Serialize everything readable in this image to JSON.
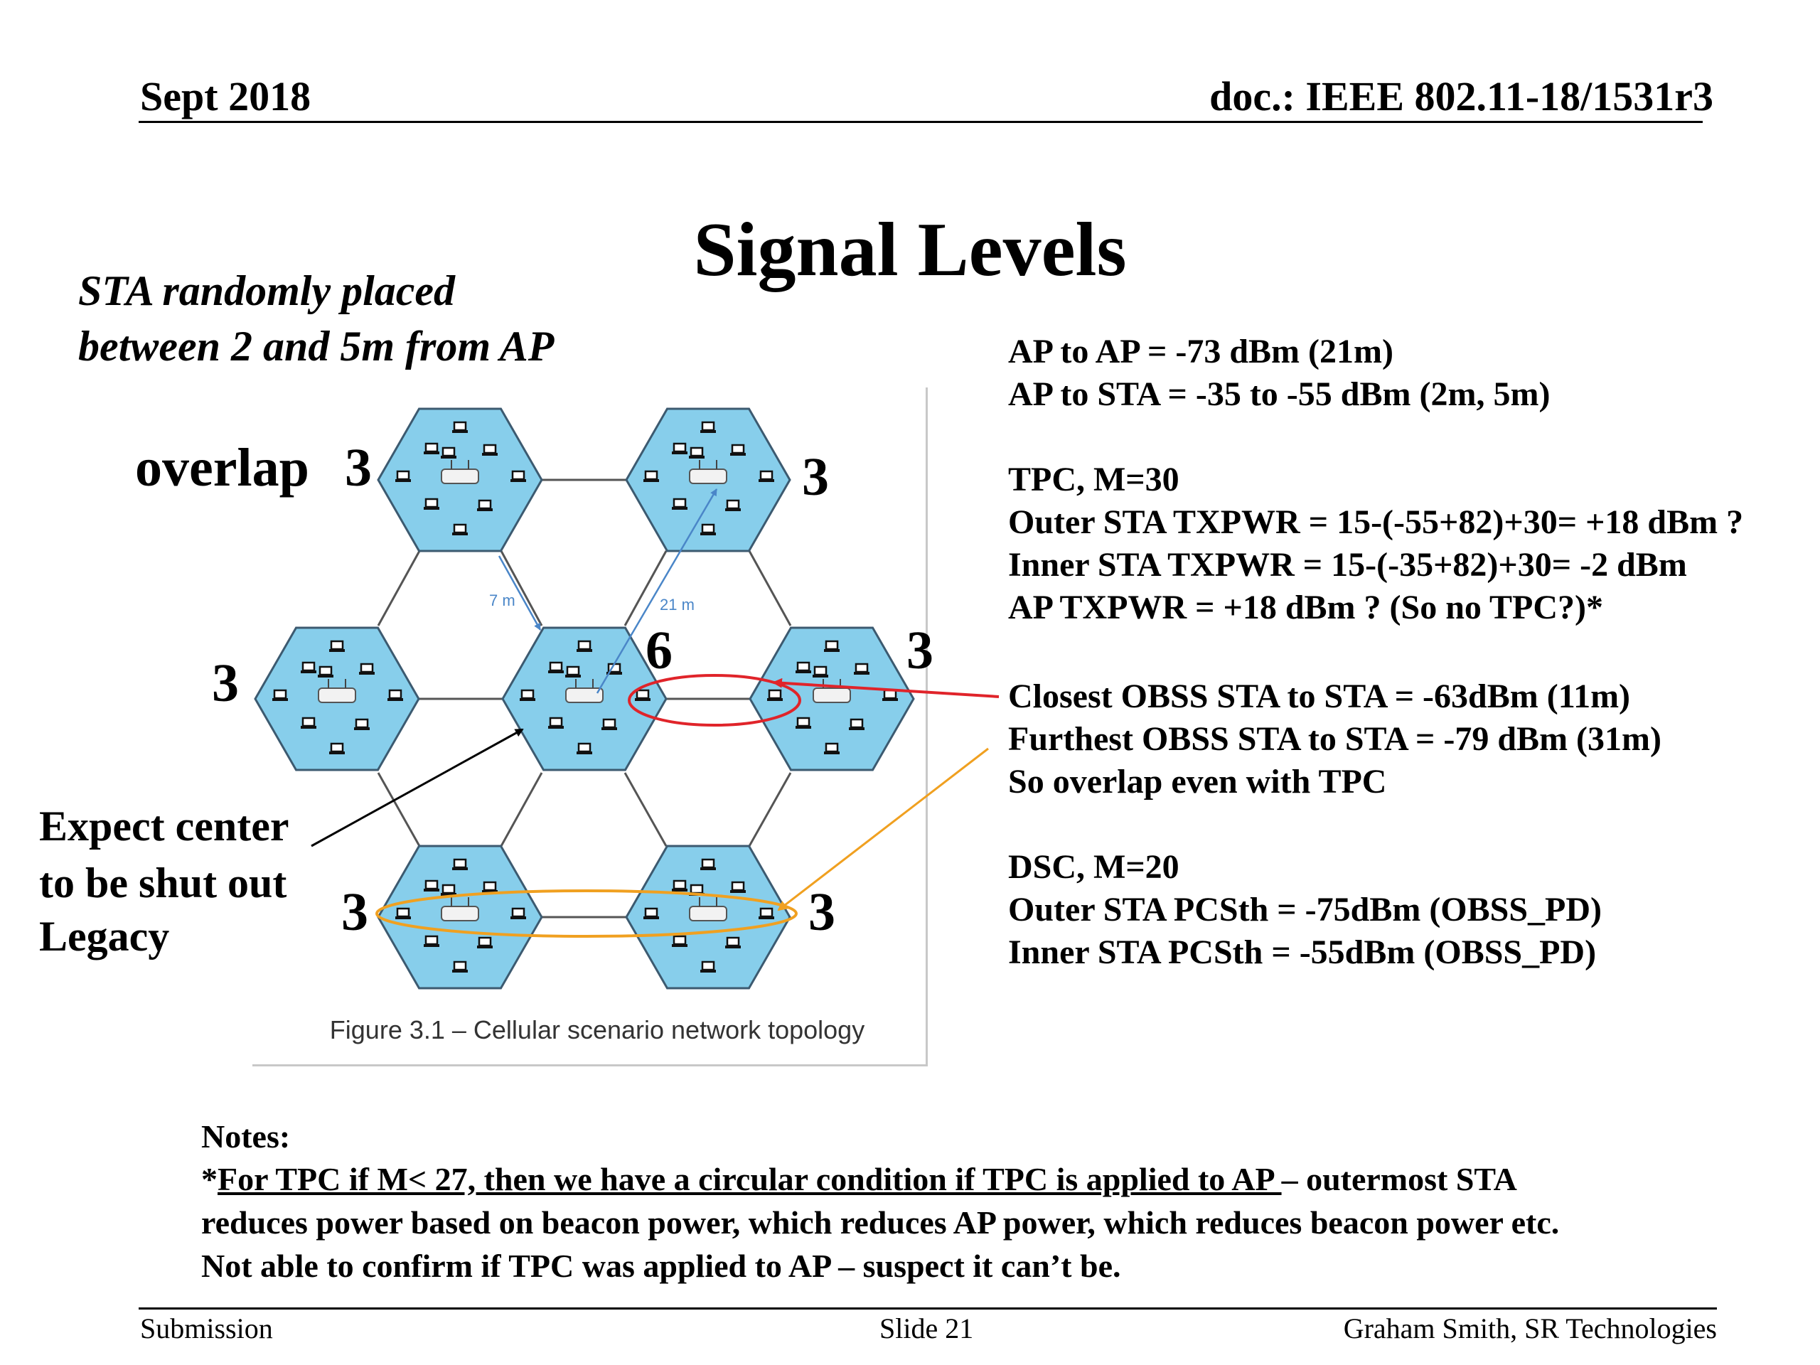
{
  "header": {
    "date": "Sept 2018",
    "doc": "doc.: IEEE 802.11-18/1531r3"
  },
  "title": "Signal Levels",
  "sta_note": [
    "STA randomly placed",
    "between 2 and 5m from AP"
  ],
  "figure": {
    "overlap_label": "overlap",
    "cell_counts": [
      "3",
      "3",
      "3",
      "6",
      "3",
      "3",
      "3"
    ],
    "distance_labels": [
      "7 m",
      "21 m"
    ],
    "caption": "Figure 3.1 – Cellular scenario network topology",
    "expect_center": [
      "Expect center",
      "to be shut out",
      "Legacy"
    ],
    "colors": {
      "cell_fill": "#87ceeb",
      "cell_stroke": "#3c5a70",
      "closest_ring": "#e0242a",
      "furthest_ring": "#f0a020",
      "distance_arrow": "#4a86c8"
    }
  },
  "right": {
    "block1": [
      "AP to AP = -73 dBm (21m)",
      "AP to STA = -35 to -55 dBm  (2m, 5m)"
    ],
    "block2": [
      "TPC, M=30",
      "Outer STA TXPWR = 15-(-55+82)+30= +18 dBm ?",
      "Inner STA  TXPWR = 15-(-35+82)+30= -2 dBm",
      "AP TXPWR = +18 dBm ? (So no TPC?)*"
    ],
    "block3": [
      "Closest OBSS STA to STA   = -63dBm (11m)",
      "Furthest OBSS STA to STA = -79 dBm (31m)",
      "So overlap even with TPC"
    ],
    "block4": [
      "DSC, M=20",
      "Outer STA PCSth =  -75dBm (OBSS_PD)",
      "Inner STA PCSth  =  -55dBm (OBSS_PD)"
    ]
  },
  "notes": {
    "heading": "Notes:",
    "star": "*",
    "underlined": "For TPC if M< 27, then we have a circular condition if TPC is applied to AP ",
    "line1_rest": "– outermost STA",
    "line2": "reduces power based on beacon power, which reduces AP power, which reduces beacon power etc.",
    "line3": "Not able to confirm if TPC was applied to AP – suspect it can’t be."
  },
  "footer": {
    "left": "Submission",
    "center": "Slide 21",
    "right": "Graham Smith, SR Technologies"
  }
}
